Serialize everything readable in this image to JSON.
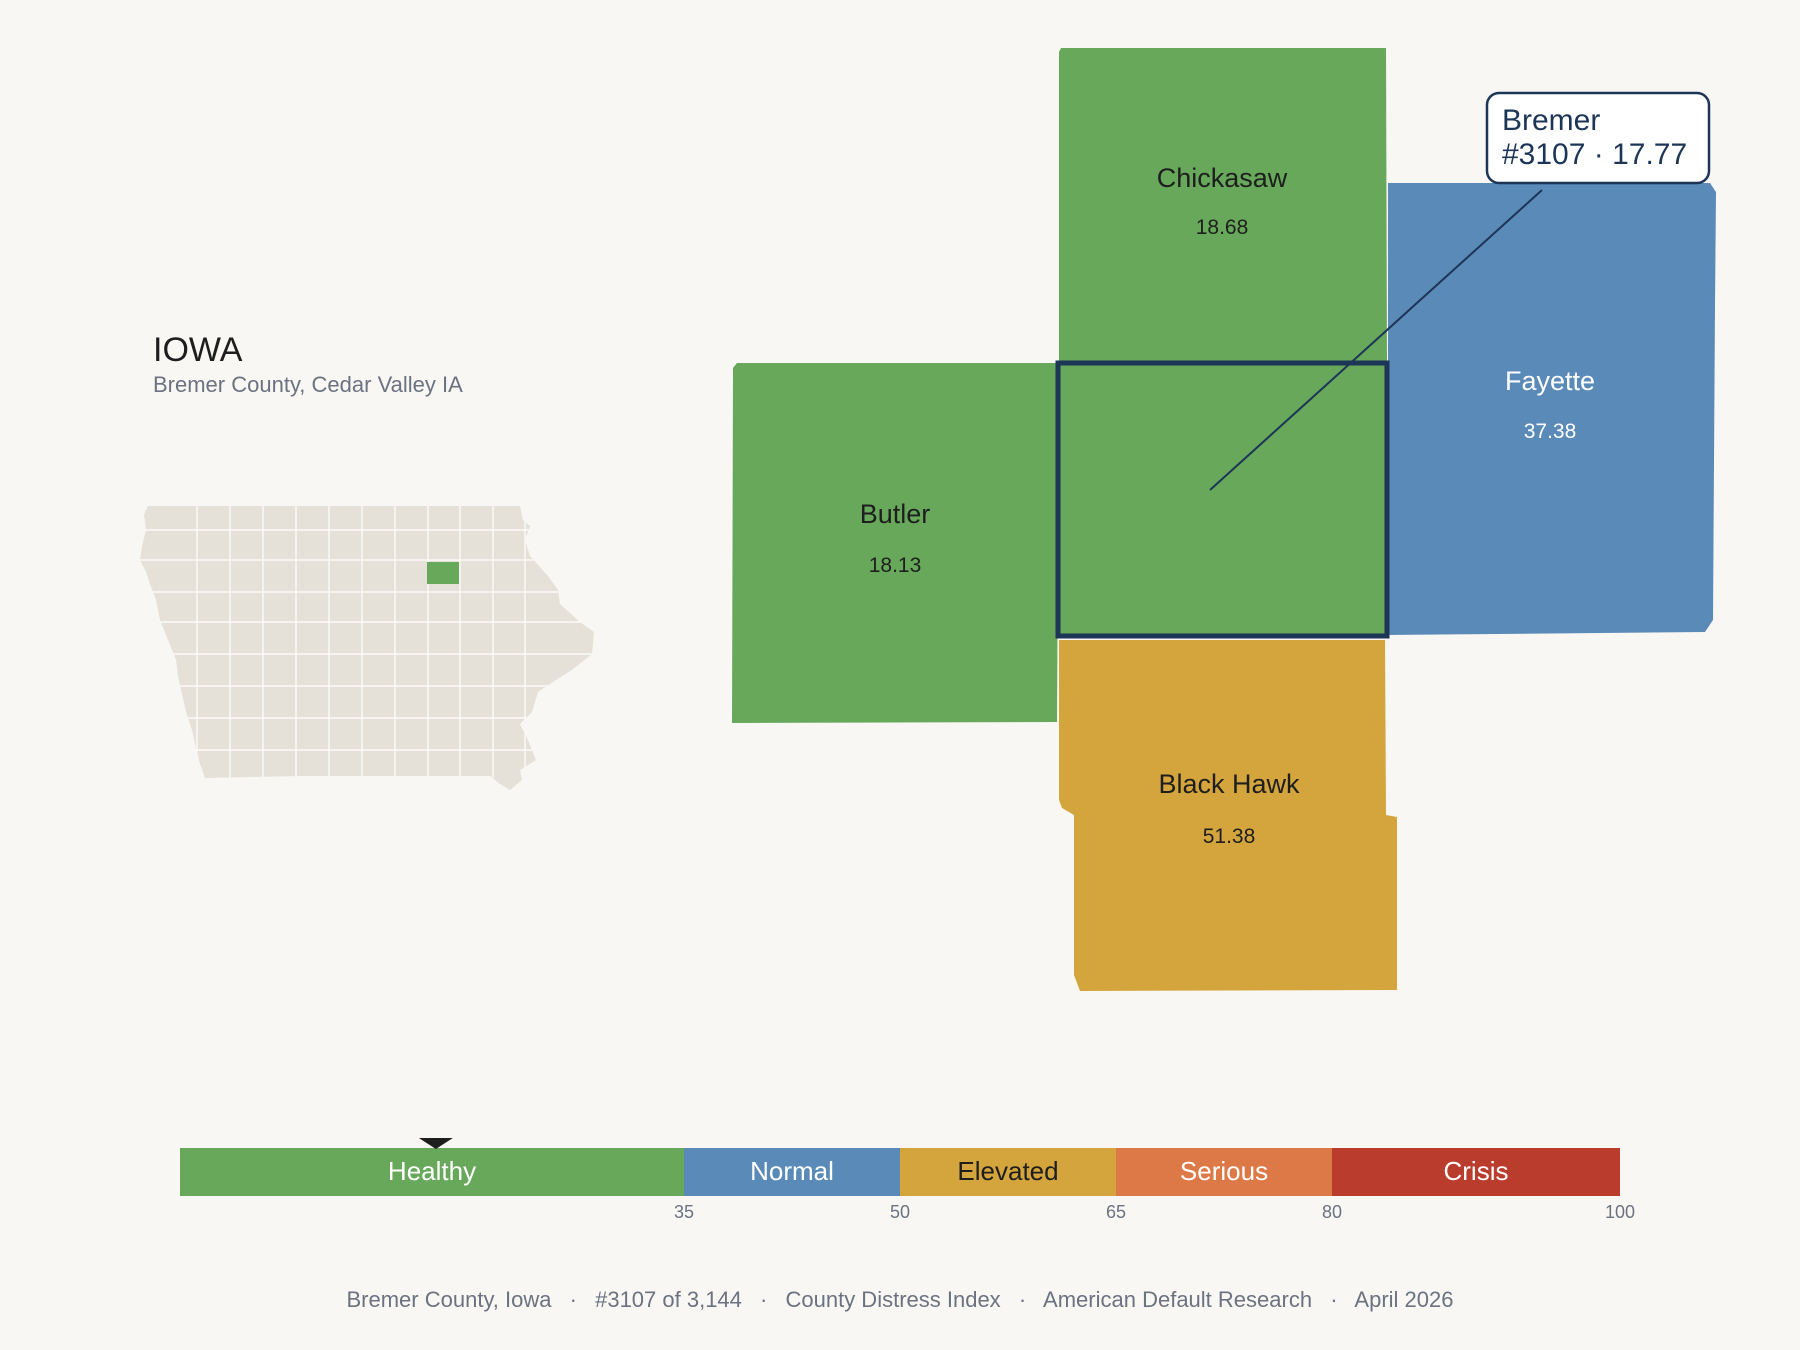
{
  "state": {
    "name": "IOWA",
    "subtitle": "Bremer County, Cedar Valley IA"
  },
  "colors": {
    "healthy": "#67a85a",
    "normal": "#5a8ab8",
    "elevated": "#d4a53c",
    "serious": "#dd7847",
    "crisis": "#b93c2c",
    "highlight_border": "#1d3557",
    "inset_fill": "#e6e1d8"
  },
  "focus_county": {
    "name": "Bremer",
    "rank": "#3107",
    "score": 17.77,
    "callout_line1": "Bremer",
    "callout_line2": "#3107 · 17.77"
  },
  "neighbors": [
    {
      "key": "chickasaw",
      "name": "Chickasaw",
      "value": "18.68",
      "status": "healthy"
    },
    {
      "key": "butler",
      "name": "Butler",
      "value": "18.13",
      "status": "healthy"
    },
    {
      "key": "fayette",
      "name": "Fayette",
      "value": "37.38",
      "status": "normal"
    },
    {
      "key": "blackhawk",
      "name": "Black Hawk",
      "value": "51.38",
      "status": "elevated"
    }
  ],
  "legend": {
    "min": 0,
    "max": 100,
    "marker_value": 17.77,
    "bands": [
      {
        "label": "Healthy",
        "from": 0,
        "to": 35,
        "color": "#67a85a",
        "text_color": "#ffffff"
      },
      {
        "label": "Normal",
        "from": 35,
        "to": 50,
        "color": "#5a8ab8",
        "text_color": "#ffffff"
      },
      {
        "label": "Elevated",
        "from": 50,
        "to": 65,
        "color": "#d4a53c",
        "text_color": "#1e1e1e"
      },
      {
        "label": "Serious",
        "from": 65,
        "to": 80,
        "color": "#dd7847",
        "text_color": "#ffffff"
      },
      {
        "label": "Crisis",
        "from": 80,
        "to": 100,
        "color": "#b93c2c",
        "text_color": "#ffffff"
      }
    ],
    "ticks": [
      "35",
      "50",
      "65",
      "80",
      "100"
    ]
  },
  "footer": {
    "county": "Bremer County, Iowa",
    "rank": "#3107 of 3,144",
    "index": "County Distress Index",
    "source": "American Default Research",
    "date": "April 2026",
    "separator": "·"
  }
}
